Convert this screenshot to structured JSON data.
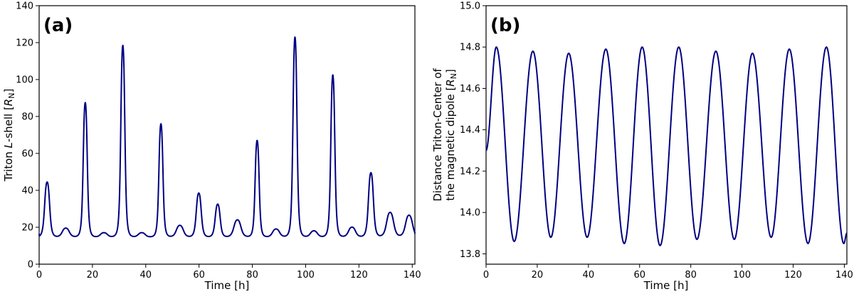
{
  "chart_data": [
    {
      "type": "line",
      "panel_label": "(a)",
      "xlabel": "Time [h]",
      "ylabel_parts": [
        "Triton ",
        "L",
        "-shell [",
        "R",
        "N",
        "]"
      ],
      "xlim": [
        0,
        141
      ],
      "ylim": [
        0,
        140
      ],
      "xticks": [
        "0",
        "20",
        "40",
        "60",
        "80",
        "100",
        "120",
        "140"
      ],
      "yticks": [
        "0",
        "20",
        "40",
        "60",
        "80",
        "100",
        "120",
        "140"
      ],
      "color": "#000080",
      "baseline": 14.5,
      "peaks": [
        {
          "t": 3.0,
          "v": 44.5
        },
        {
          "t": 10.0,
          "v": 19.5
        },
        {
          "t": 17.3,
          "v": 87.5
        },
        {
          "t": 24.3,
          "v": 17.0
        },
        {
          "t": 31.4,
          "v": 118.5
        },
        {
          "t": 38.5,
          "v": 17.0
        },
        {
          "t": 45.7,
          "v": 76.0
        },
        {
          "t": 52.8,
          "v": 21.0
        },
        {
          "t": 59.9,
          "v": 38.5
        },
        {
          "t": 67.0,
          "v": 32.5
        },
        {
          "t": 74.4,
          "v": 24.0
        },
        {
          "t": 81.8,
          "v": 67.0
        },
        {
          "t": 88.9,
          "v": 19.0
        },
        {
          "t": 96.0,
          "v": 123.0
        },
        {
          "t": 103.1,
          "v": 18.0
        },
        {
          "t": 110.2,
          "v": 102.5
        },
        {
          "t": 117.4,
          "v": 20.0
        },
        {
          "t": 124.5,
          "v": 49.5
        },
        {
          "t": 131.7,
          "v": 28.0
        },
        {
          "t": 138.8,
          "v": 26.5
        }
      ],
      "start_value": 16.5,
      "end_value": 16.5
    },
    {
      "type": "line",
      "panel_label": "(b)",
      "xlabel": "Time [h]",
      "ylabel_line1": "Distance Triton-Center of",
      "ylabel_parts": [
        "the magnetic dipole [",
        "R",
        "N",
        "]"
      ],
      "xlim": [
        0,
        141
      ],
      "ylim": [
        13.75,
        15.0
      ],
      "xticks": [
        "0",
        "20",
        "40",
        "60",
        "80",
        "100",
        "120",
        "140"
      ],
      "yticks": [
        "13.8",
        "14.0",
        "14.2",
        "14.4",
        "14.6",
        "14.8",
        "15.0"
      ],
      "ytick_values": [
        13.8,
        14.0,
        14.2,
        14.4,
        14.6,
        14.8,
        15.0
      ],
      "color": "#000080",
      "extrema": [
        {
          "t": 0.0,
          "v": 14.3
        },
        {
          "t": 4.0,
          "v": 14.8
        },
        {
          "t": 11.0,
          "v": 13.86
        },
        {
          "t": 18.3,
          "v": 14.78
        },
        {
          "t": 25.3,
          "v": 13.88
        },
        {
          "t": 32.3,
          "v": 14.77
        },
        {
          "t": 39.5,
          "v": 13.88
        },
        {
          "t": 46.8,
          "v": 14.79
        },
        {
          "t": 54.0,
          "v": 13.85
        },
        {
          "t": 61.0,
          "v": 14.8
        },
        {
          "t": 68.0,
          "v": 13.84
        },
        {
          "t": 75.3,
          "v": 14.8
        },
        {
          "t": 82.4,
          "v": 13.87
        },
        {
          "t": 89.8,
          "v": 14.78
        },
        {
          "t": 97.0,
          "v": 13.87
        },
        {
          "t": 104.1,
          "v": 14.77
        },
        {
          "t": 111.4,
          "v": 13.88
        },
        {
          "t": 118.5,
          "v": 14.79
        },
        {
          "t": 125.8,
          "v": 13.85
        },
        {
          "t": 133.0,
          "v": 14.8
        },
        {
          "t": 139.8,
          "v": 13.85
        },
        {
          "t": 141.0,
          "v": 13.9
        }
      ]
    }
  ]
}
